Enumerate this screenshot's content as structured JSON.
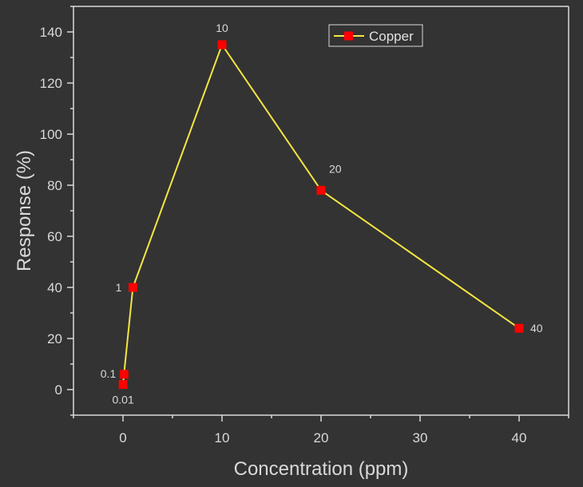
{
  "chart_data": {
    "type": "line",
    "xlabel": "Concentration (ppm)",
    "ylabel": "Response (%)",
    "xlim": [
      -5,
      45
    ],
    "ylim": [
      -10,
      150
    ],
    "xticks": [
      0,
      10,
      20,
      30,
      40
    ],
    "yticks": [
      0,
      20,
      40,
      60,
      80,
      100,
      120,
      140
    ],
    "grid": false,
    "legend_position": "top-right",
    "series": [
      {
        "name": "Copper",
        "color": "#f5e642",
        "marker_color": "#ff0000",
        "x": [
          0.01,
          0.1,
          1,
          10,
          20,
          40
        ],
        "y": [
          2,
          6,
          40,
          135,
          78,
          24
        ],
        "point_labels": [
          "0.01",
          "0.1",
          "1",
          "10",
          "20",
          "40"
        ]
      }
    ]
  }
}
